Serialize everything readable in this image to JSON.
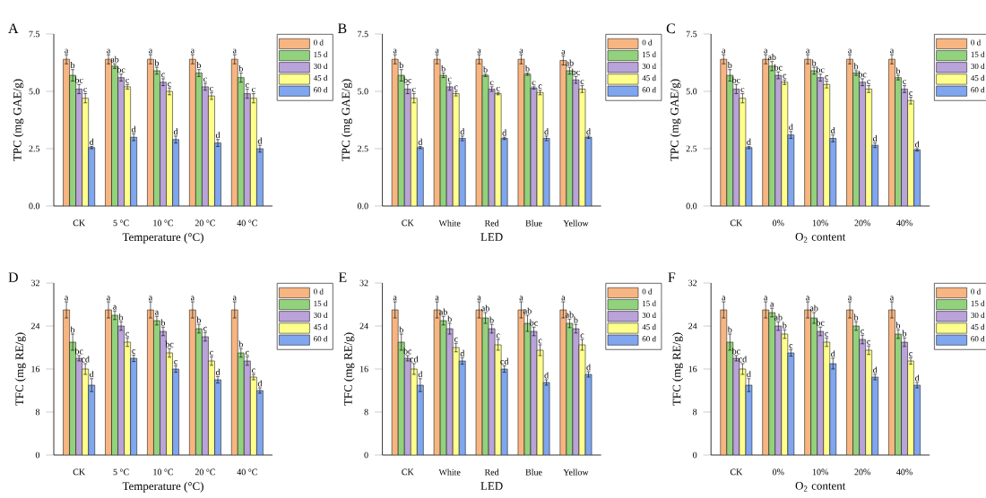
{
  "chart_data": [
    {
      "type": "bar",
      "title": "A",
      "categories": [
        "CK",
        "5 °C",
        "10 °C",
        "20 °C",
        "40 °C"
      ],
      "xlabel": "Temperature (°C)",
      "ylabel": "TPC (mg GAE/g)",
      "ylim": [
        0,
        7.5
      ],
      "yticks": [
        {
          "value": 0,
          "label": "0.0"
        },
        {
          "value": 2.5,
          "label": "2.5"
        },
        {
          "value": 5,
          "label": "5.0"
        },
        {
          "value": 7.5,
          "label": "7.5"
        }
      ],
      "legend": "top right",
      "series": [
        {
          "name": "0 d",
          "color": "#f7b581",
          "values": [
            6.4,
            6.4,
            6.4,
            6.4,
            6.4
          ],
          "errors": [
            0.2,
            0.2,
            0.2,
            0.2,
            0.2
          ],
          "value_labels": [
            "a",
            "a",
            "a",
            "a",
            "a"
          ]
        },
        {
          "name": "15 d",
          "color": "#92d27c",
          "values": [
            5.7,
            6.1,
            5.9,
            5.8,
            5.6
          ],
          "errors": [
            0.25,
            0.1,
            0.15,
            0.15,
            0.2
          ],
          "value_labels": [
            "b",
            "ab",
            "b",
            "b",
            "b"
          ]
        },
        {
          "name": "30 d",
          "color": "#b9a3d9",
          "values": [
            5.1,
            5.6,
            5.4,
            5.2,
            4.9
          ],
          "errors": [
            0.2,
            0.15,
            0.15,
            0.15,
            0.2
          ],
          "value_labels": [
            "bc",
            "bc",
            "c",
            "c",
            "c"
          ]
        },
        {
          "name": "45 d",
          "color": "#ffff8c",
          "values": [
            4.7,
            5.2,
            5.0,
            4.8,
            4.7
          ],
          "errors": [
            0.2,
            0.1,
            0.15,
            0.15,
            0.2
          ],
          "value_labels": [
            "c",
            "c",
            "c",
            "c",
            "c"
          ]
        },
        {
          "name": "60 d",
          "color": "#7fa6ee",
          "values": [
            2.55,
            3.0,
            2.9,
            2.75,
            2.5
          ],
          "errors": [
            0.05,
            0.15,
            0.15,
            0.15,
            0.15
          ],
          "value_labels": [
            "d",
            "d",
            "d",
            "d",
            "d"
          ]
        }
      ]
    },
    {
      "type": "bar",
      "title": "B",
      "categories": [
        "CK",
        "White",
        "Red",
        "Blue",
        "Yellow"
      ],
      "xlabel": "LED",
      "ylabel": "TPC (mg GAE/g)",
      "ylim": [
        0,
        7.5
      ],
      "yticks": [
        {
          "value": 0,
          "label": "0.0"
        },
        {
          "value": 2.5,
          "label": "2.5"
        },
        {
          "value": 5,
          "label": "5.0"
        },
        {
          "value": 7.5,
          "label": "7.5"
        }
      ],
      "legend": "top right",
      "series": [
        {
          "name": "0 d",
          "color": "#f7b581",
          "values": [
            6.4,
            6.4,
            6.4,
            6.4,
            6.35
          ],
          "errors": [
            0.2,
            0.2,
            0.2,
            0.2,
            0.2
          ],
          "value_labels": [
            "a",
            "a",
            "a",
            "a",
            "a"
          ]
        },
        {
          "name": "15 d",
          "color": "#92d27c",
          "values": [
            5.7,
            5.7,
            5.7,
            5.75,
            5.9
          ],
          "errors": [
            0.25,
            0.1,
            0.05,
            0.05,
            0.15
          ],
          "value_labels": [
            "b",
            "b",
            "b",
            "b",
            "ab"
          ]
        },
        {
          "name": "30 d",
          "color": "#b9a3d9",
          "values": [
            5.1,
            5.2,
            5.1,
            5.15,
            5.5
          ],
          "errors": [
            0.2,
            0.15,
            0.1,
            0.05,
            0.15
          ],
          "value_labels": [
            "bc",
            "c",
            "c",
            "c",
            "bc"
          ]
        },
        {
          "name": "45 d",
          "color": "#ffff8c",
          "values": [
            4.7,
            4.9,
            4.9,
            4.95,
            5.1
          ],
          "errors": [
            0.2,
            0.1,
            0.05,
            0.1,
            0.15
          ],
          "value_labels": [
            "c",
            "c",
            "c",
            "c",
            "c"
          ]
        },
        {
          "name": "60 d",
          "color": "#7fa6ee",
          "values": [
            2.55,
            2.95,
            2.95,
            2.95,
            3.0
          ],
          "errors": [
            0.05,
            0.1,
            0.05,
            0.1,
            0.05
          ],
          "value_labels": [
            "d",
            "d",
            "d",
            "d",
            "d"
          ]
        }
      ]
    },
    {
      "type": "bar",
      "title": "C",
      "categories": [
        "CK",
        "0%",
        "10%",
        "20%",
        "40%"
      ],
      "xlabel": "O$_{2}$ content",
      "ylabel": "TPC (mg GAE/g)",
      "ylim": [
        0,
        7.5
      ],
      "yticks": [
        {
          "value": 0,
          "label": "0.0"
        },
        {
          "value": 2.5,
          "label": "2.5"
        },
        {
          "value": 5,
          "label": "5.0"
        },
        {
          "value": 7.5,
          "label": "7.5"
        }
      ],
      "legend": "top right",
      "series": [
        {
          "name": "0 d",
          "color": "#f7b581",
          "values": [
            6.4,
            6.4,
            6.4,
            6.4,
            6.4
          ],
          "errors": [
            0.2,
            0.2,
            0.2,
            0.2,
            0.2
          ],
          "value_labels": [
            "a",
            "a",
            "a",
            "a",
            "a"
          ]
        },
        {
          "name": "15 d",
          "color": "#92d27c",
          "values": [
            5.7,
            6.1,
            5.9,
            5.8,
            5.6
          ],
          "errors": [
            0.25,
            0.2,
            0.15,
            0.1,
            0.1
          ],
          "value_labels": [
            "b",
            "ab",
            "b",
            "b",
            "b"
          ]
        },
        {
          "name": "30 d",
          "color": "#b9a3d9",
          "values": [
            5.1,
            5.7,
            5.6,
            5.4,
            5.1
          ],
          "errors": [
            0.2,
            0.15,
            0.15,
            0.15,
            0.15
          ],
          "value_labels": [
            "bc",
            "bc",
            "bc",
            "bc",
            "c"
          ]
        },
        {
          "name": "45 d",
          "color": "#ffff8c",
          "values": [
            4.7,
            5.4,
            5.3,
            5.1,
            4.6
          ],
          "errors": [
            0.2,
            0.1,
            0.15,
            0.15,
            0.15
          ],
          "value_labels": [
            "c",
            "c",
            "c",
            "c",
            "c"
          ]
        },
        {
          "name": "60 d",
          "color": "#7fa6ee",
          "values": [
            2.55,
            3.1,
            2.95,
            2.65,
            2.45
          ],
          "errors": [
            0.05,
            0.15,
            0.15,
            0.1,
            0.05
          ],
          "value_labels": [
            "d",
            "d",
            "d",
            "d",
            "d"
          ]
        }
      ]
    },
    {
      "type": "bar",
      "title": "D",
      "categories": [
        "CK",
        "5 °C",
        "10 °C",
        "20 °C",
        "40 °C"
      ],
      "xlabel": "Temperature (°C)",
      "ylabel": "TFC (mg RE/g)",
      "ylim": [
        0,
        32
      ],
      "yticks": [
        0,
        8,
        16,
        24,
        32
      ],
      "legend": "top right",
      "series": [
        {
          "name": "0 d",
          "color": "#f7b581",
          "values": [
            27,
            27,
            27,
            27,
            27
          ],
          "errors": [
            1.5,
            1.5,
            1.5,
            1.5,
            1.5
          ],
          "value_labels": [
            "a",
            "a",
            "a",
            "a",
            "a"
          ]
        },
        {
          "name": "15 d",
          "color": "#92d27c",
          "values": [
            21,
            26,
            25,
            23.5,
            19
          ],
          "errors": [
            1.5,
            0.8,
            0.8,
            0.8,
            0.8
          ],
          "value_labels": [
            "b",
            "a",
            "a",
            "b",
            "b"
          ]
        },
        {
          "name": "30 d",
          "color": "#b9a3d9",
          "values": [
            18,
            24,
            23,
            22,
            17.5
          ],
          "errors": [
            0.5,
            0.8,
            0.8,
            0.8,
            0.8
          ],
          "value_labels": [
            "bc",
            "b",
            "b",
            "c",
            "c"
          ]
        },
        {
          "name": "45 d",
          "color": "#ffff8c",
          "values": [
            16,
            21,
            19,
            17.5,
            14.5
          ],
          "errors": [
            1,
            0.8,
            0.8,
            0.8,
            0.5
          ],
          "value_labels": [
            "cd",
            "c",
            "bc",
            "c",
            "c"
          ]
        },
        {
          "name": "60 d",
          "color": "#7fa6ee",
          "values": [
            13,
            18,
            16,
            14,
            12
          ],
          "errors": [
            1.2,
            0.6,
            0.6,
            0.6,
            0.5
          ],
          "value_labels": [
            "d",
            "c",
            "c",
            "d",
            "d"
          ]
        }
      ]
    },
    {
      "type": "bar",
      "title": "E",
      "categories": [
        "CK",
        "White",
        "Red",
        "Blue",
        "Yellow"
      ],
      "xlabel": "LED",
      "ylabel": "TFC (mg RE/g)",
      "ylim": [
        0,
        32
      ],
      "yticks": [
        0,
        8,
        16,
        24,
        32
      ],
      "legend": "top right",
      "series": [
        {
          "name": "0 d",
          "color": "#f7b581",
          "values": [
            27,
            27,
            27,
            27,
            27
          ],
          "errors": [
            1.5,
            1.5,
            1.5,
            1.5,
            1.5
          ],
          "value_labels": [
            "a",
            "a",
            "a",
            "a",
            "a"
          ]
        },
        {
          "name": "15 d",
          "color": "#92d27c",
          "values": [
            21,
            25,
            25.5,
            24.5,
            24.5
          ],
          "errors": [
            1.5,
            0.8,
            1,
            1.5,
            0.8
          ],
          "value_labels": [
            "b",
            "ab",
            "ab",
            "ab",
            "ab"
          ]
        },
        {
          "name": "30 d",
          "color": "#b9a3d9",
          "values": [
            18,
            23.5,
            23.5,
            23,
            23.5
          ],
          "errors": [
            0.5,
            1,
            0.8,
            0.8,
            0.8
          ],
          "value_labels": [
            "bc",
            "b",
            "b",
            "bc",
            "b"
          ]
        },
        {
          "name": "45 d",
          "color": "#ffff8c",
          "values": [
            16,
            20,
            20.5,
            19.5,
            20.5
          ],
          "errors": [
            1,
            0.8,
            1,
            1,
            1
          ],
          "value_labels": [
            "cd",
            "c",
            "c",
            "c",
            "c"
          ]
        },
        {
          "name": "60 d",
          "color": "#7fa6ee",
          "values": [
            13,
            17.5,
            16,
            13.5,
            15
          ],
          "errors": [
            1.2,
            0.6,
            0.6,
            0.5,
            0.5
          ],
          "value_labels": [
            "d",
            "d",
            "cd",
            "d",
            "d"
          ]
        }
      ]
    },
    {
      "type": "bar",
      "title": "F",
      "categories": [
        "CK",
        "0%",
        "10%",
        "20%",
        "40%"
      ],
      "xlabel": "O$_{2}$ content",
      "ylabel": "TFC (mg RE/g)",
      "ylim": [
        0,
        32
      ],
      "yticks": [
        0,
        8,
        16,
        24,
        32
      ],
      "legend": "top right",
      "series": [
        {
          "name": "0 d",
          "color": "#f7b581",
          "values": [
            27,
            27,
            27,
            27,
            27
          ],
          "errors": [
            1.5,
            1.5,
            1.5,
            1.5,
            1.5
          ],
          "value_labels": [
            "a",
            "a",
            "a",
            "a",
            "a"
          ]
        },
        {
          "name": "15 d",
          "color": "#92d27c",
          "values": [
            21,
            26.5,
            25.5,
            24,
            22.5
          ],
          "errors": [
            1.5,
            0.8,
            1,
            0.8,
            0.8
          ],
          "value_labels": [
            "b",
            "a",
            "ab",
            "b",
            "b"
          ]
        },
        {
          "name": "30 d",
          "color": "#b9a3d9",
          "values": [
            18,
            24,
            23,
            21.5,
            21
          ],
          "errors": [
            0.5,
            0.8,
            0.8,
            0.8,
            0.8
          ],
          "value_labels": [
            "bc",
            "ab",
            "bc",
            "c",
            "b"
          ]
        },
        {
          "name": "45 d",
          "color": "#ffff8c",
          "values": [
            16,
            22.5,
            21,
            19.5,
            17.5
          ],
          "errors": [
            1,
            0.8,
            0.8,
            0.8,
            0.6
          ],
          "value_labels": [
            "cd",
            "b",
            "c",
            "c",
            "c"
          ]
        },
        {
          "name": "60 d",
          "color": "#7fa6ee",
          "values": [
            13,
            19,
            17,
            14.5,
            13
          ],
          "errors": [
            1.2,
            0.6,
            1,
            0.5,
            0.5
          ],
          "value_labels": [
            "d",
            "c",
            "d",
            "d",
            "d"
          ]
        }
      ]
    }
  ]
}
